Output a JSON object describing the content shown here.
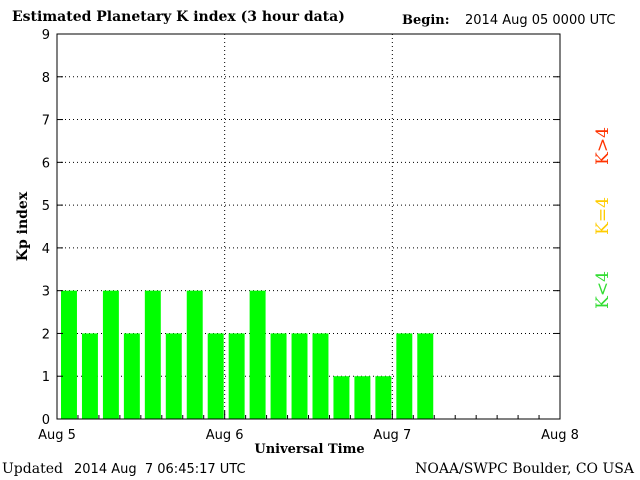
{
  "header": {
    "title": "Estimated Planetary K index (3 hour data)",
    "begin_label": "Begin:",
    "begin_value": "2014 Aug 05 0000 UTC"
  },
  "footer": {
    "updated_label": "Updated",
    "updated_value": "2014 Aug  7 06:45:17 UTC",
    "source": "NOAA/SWPC Boulder, CO USA"
  },
  "chart_data": {
    "type": "bar",
    "title": "Estimated Planetary K index (3 hour data)",
    "xlabel": "Universal Time",
    "ylabel": "Kp index",
    "ylim": [
      0,
      9
    ],
    "yticks": [
      "0",
      "1",
      "2",
      "3",
      "4",
      "5",
      "6",
      "7",
      "8",
      "9"
    ],
    "xtick_labels": [
      "Aug 5",
      "Aug 6",
      "Aug 7",
      "Aug 8"
    ],
    "x_unit": "3-hour intervals starting 2014 Aug 05 0000 UTC",
    "total_slots": 24,
    "values": [
      3,
      2,
      3,
      2,
      3,
      2,
      3,
      2,
      2,
      3,
      2,
      2,
      2,
      1,
      1,
      1,
      2,
      2
    ],
    "bar_color": "#00ff00",
    "grid": true,
    "legend": [
      {
        "label": "K<4",
        "color": "#33dd33"
      },
      {
        "label": "K=4",
        "color": "#ffcc00"
      },
      {
        "label": "K>4",
        "color": "#ff3300"
      }
    ]
  }
}
